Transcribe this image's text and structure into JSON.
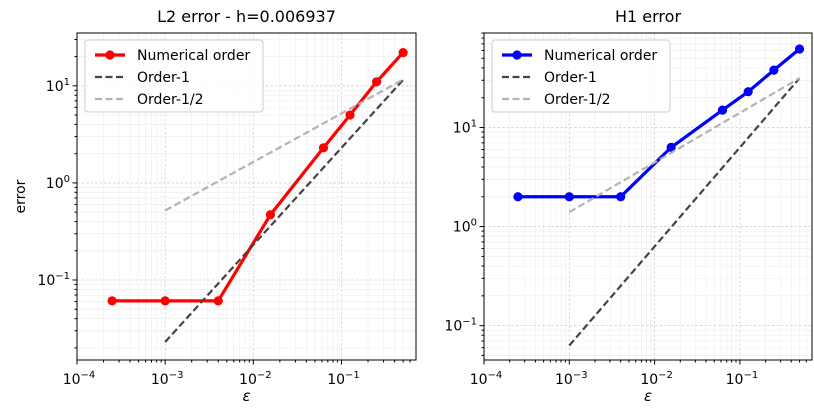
{
  "chart_data": [
    {
      "type": "line",
      "title": "L2 error - h=0.006937",
      "xlabel": "ε",
      "ylabel": "error",
      "xscale": "log",
      "yscale": "log",
      "xlim": [
        0.0001,
        0.7
      ],
      "ylim": [
        0.015,
        35
      ],
      "xticks": [
        0.0001,
        0.001,
        0.01,
        0.1
      ],
      "xtick_labels": [
        "10",
        "10",
        "10",
        "10"
      ],
      "xtick_exps": [
        "−4",
        "−3",
        "−2",
        "−1"
      ],
      "yticks": [
        0.1,
        1,
        10
      ],
      "ytick_labels": [
        "10",
        "10",
        "10"
      ],
      "ytick_exps": [
        "−1",
        "0",
        "1"
      ],
      "grid": true,
      "legend": "top-left",
      "series": [
        {
          "name": "Numerical order",
          "color": "#ff0000",
          "style": "solid-markers",
          "x": [
            0.00025,
            0.001,
            0.004,
            0.015625,
            0.0625,
            0.125,
            0.25,
            0.5
          ],
          "y": [
            0.061,
            0.061,
            0.061,
            0.47,
            2.3,
            5.0,
            11,
            22
          ]
        },
        {
          "name": "Order-1",
          "color": "#444444",
          "style": "dashed",
          "x": [
            0.001,
            0.5
          ],
          "y": [
            0.023,
            11.5
          ]
        },
        {
          "name": "Order-1/2",
          "color": "#b3b3b3",
          "style": "dashed",
          "x": [
            0.001,
            0.5
          ],
          "y": [
            0.52,
            11.6
          ]
        }
      ]
    },
    {
      "type": "line",
      "title": "H1 error",
      "xlabel": "ε",
      "ylabel": "",
      "xscale": "log",
      "yscale": "log",
      "xlim": [
        0.0001,
        0.7
      ],
      "ylim": [
        0.045,
        90
      ],
      "xticks": [
        0.0001,
        0.001,
        0.01,
        0.1
      ],
      "xtick_labels": [
        "10",
        "10",
        "10",
        "10"
      ],
      "xtick_exps": [
        "−4",
        "−3",
        "−2",
        "−1"
      ],
      "yticks": [
        0.1,
        1,
        10
      ],
      "ytick_labels": [
        "10",
        "10",
        "10"
      ],
      "ytick_exps": [
        "−1",
        "0",
        "1"
      ],
      "grid": true,
      "legend": "top-left",
      "series": [
        {
          "name": "Numerical order",
          "color": "#0000ff",
          "style": "solid-markers",
          "x": [
            0.00025,
            0.001,
            0.004,
            0.015625,
            0.0625,
            0.125,
            0.25,
            0.5
          ],
          "y": [
            2.0,
            2.0,
            2.0,
            6.3,
            15,
            23,
            38,
            62
          ]
        },
        {
          "name": "Order-1",
          "color": "#444444",
          "style": "dashed",
          "x": [
            0.001,
            0.5
          ],
          "y": [
            0.063,
            31.5
          ]
        },
        {
          "name": "Order-1/2",
          "color": "#b3b3b3",
          "style": "dashed",
          "x": [
            0.001,
            0.5
          ],
          "y": [
            1.4,
            31.5
          ]
        }
      ]
    }
  ]
}
